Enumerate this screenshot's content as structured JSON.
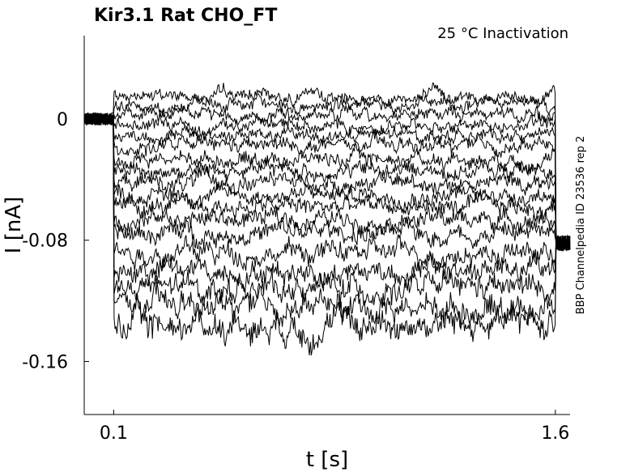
{
  "chart_data": {
    "type": "line",
    "title": "Kir3.1  Rat  CHO_FT",
    "subtitle": "25 °C  Inactivation",
    "side_label": "BBP Channelpedia ID 23536 rep 2",
    "xlabel": "t [s]",
    "ylabel": "I [nA]",
    "xlim": [
      0.0,
      1.65
    ],
    "ylim": [
      -0.195,
      0.055
    ],
    "xticks": [
      0.1,
      1.6
    ],
    "xtick_labels": [
      "0.1",
      "1.6"
    ],
    "yticks": [
      0,
      -0.08,
      -0.16
    ],
    "ytick_labels": [
      "0",
      "-0.08",
      "-0.16"
    ],
    "grid": false,
    "color": "#000000",
    "protocol": {
      "step_start_s": 0.1,
      "step_end_s": 1.6,
      "trace_end_s": 1.65
    },
    "sweeps": [
      {
        "baseline": 0.0,
        "step_level": 0.015,
        "tail_level": -0.082,
        "noise": 0.004
      },
      {
        "baseline": 0.0,
        "step_level": 0.009,
        "tail_level": -0.082,
        "noise": 0.004
      },
      {
        "baseline": 0.0,
        "step_level": 0.003,
        "tail_level": -0.082,
        "noise": 0.004
      },
      {
        "baseline": 0.0,
        "step_level": -0.004,
        "tail_level": -0.082,
        "noise": 0.004
      },
      {
        "baseline": 0.0,
        "step_level": -0.011,
        "tail_level": -0.082,
        "noise": 0.004
      },
      {
        "baseline": 0.0,
        "step_level": -0.018,
        "tail_level": -0.082,
        "noise": 0.0045
      },
      {
        "baseline": 0.0,
        "step_level": -0.026,
        "tail_level": -0.082,
        "noise": 0.0045
      },
      {
        "baseline": 0.0,
        "step_level": -0.034,
        "tail_level": -0.082,
        "noise": 0.005
      },
      {
        "baseline": 0.0,
        "step_level": -0.042,
        "tail_level": -0.082,
        "noise": 0.005
      },
      {
        "baseline": 0.0,
        "step_level": -0.05,
        "tail_level": -0.082,
        "noise": 0.005
      },
      {
        "baseline": 0.0,
        "step_level": -0.058,
        "tail_level": -0.082,
        "noise": 0.0055
      },
      {
        "baseline": 0.0,
        "step_level": -0.066,
        "tail_level": -0.082,
        "noise": 0.0055
      },
      {
        "baseline": 0.0,
        "step_level": -0.075,
        "tail_level": -0.082,
        "noise": 0.006
      },
      {
        "baseline": 0.0,
        "step_level": -0.088,
        "tail_level": -0.082,
        "noise": 0.0065
      },
      {
        "baseline": 0.0,
        "step_level": -0.1,
        "tail_level": -0.082,
        "noise": 0.007
      },
      {
        "baseline": 0.0,
        "step_level": -0.112,
        "tail_level": -0.082,
        "noise": 0.0075
      },
      {
        "baseline": 0.0,
        "step_level": -0.124,
        "tail_level": -0.082,
        "noise": 0.008
      },
      {
        "baseline": 0.0,
        "step_level": -0.135,
        "tail_level": -0.082,
        "noise": 0.009
      }
    ]
  }
}
